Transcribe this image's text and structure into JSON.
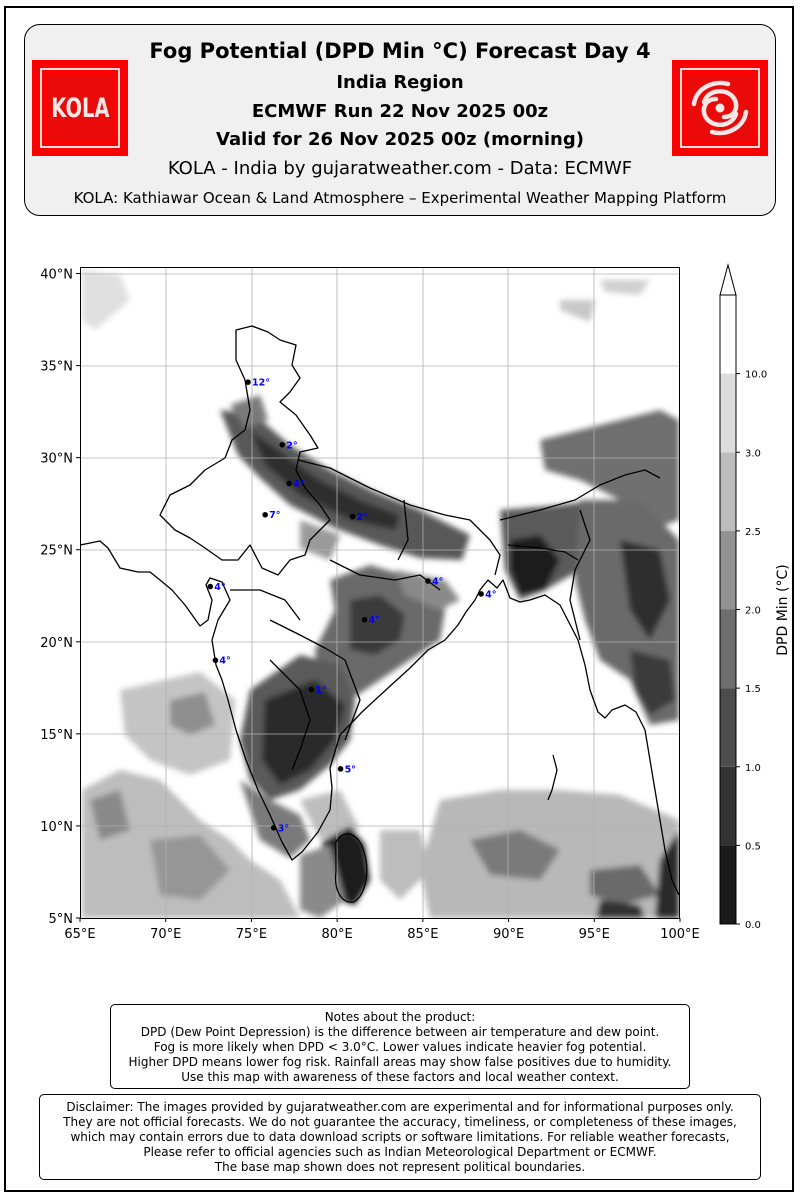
{
  "header": {
    "title": "Fog Potential (DPD Min °C) Forecast Day 4",
    "region": "India Region",
    "run": "ECMWF Run 22 Nov 2025 00z",
    "valid": "Valid for 26 Nov 2025 00z (morning)",
    "credit": "KOLA - India by gujaratweather.com  -  Data: ECMWF",
    "platform": "KOLA: Kathiawar Ocean & Land Atmosphere – Experimental Weather Mapping Platform"
  },
  "logos": {
    "left": {
      "text": "KOLA",
      "color": "#ff0000"
    },
    "right": {
      "icon": "cyclone-icon",
      "color": "#ff0000"
    }
  },
  "map": {
    "lon_range": [
      65,
      100
    ],
    "lat_range": [
      5,
      40.3
    ],
    "x_ticks": [
      "65°E",
      "70°E",
      "75°E",
      "80°E",
      "85°E",
      "90°E",
      "95°E",
      "100°E"
    ],
    "y_ticks": [
      "5°N",
      "10°N",
      "15°N",
      "20°N",
      "25°N",
      "30°N",
      "35°N",
      "40°N"
    ],
    "grid": true,
    "stations": [
      {
        "lon": 74.8,
        "lat": 34.1,
        "label": "12°"
      },
      {
        "lon": 76.8,
        "lat": 30.7,
        "label": "2°"
      },
      {
        "lon": 77.2,
        "lat": 28.6,
        "label": "4°"
      },
      {
        "lon": 75.8,
        "lat": 26.9,
        "label": "7°"
      },
      {
        "lon": 80.9,
        "lat": 26.8,
        "label": "2°"
      },
      {
        "lon": 72.6,
        "lat": 23.0,
        "label": "4°"
      },
      {
        "lon": 85.3,
        "lat": 23.3,
        "label": "4°"
      },
      {
        "lon": 88.4,
        "lat": 22.6,
        "label": "4°"
      },
      {
        "lon": 81.6,
        "lat": 21.2,
        "label": "4°"
      },
      {
        "lon": 72.9,
        "lat": 19.0,
        "label": "4°"
      },
      {
        "lon": 78.5,
        "lat": 17.4,
        "label": "1°"
      },
      {
        "lon": 80.2,
        "lat": 13.1,
        "label": "5°"
      },
      {
        "lon": 76.3,
        "lat": 9.9,
        "label": "3°"
      }
    ],
    "station_label_color": "#0000ff"
  },
  "colorbar": {
    "label": "DPD Min (°C)",
    "ticks": [
      "0.0",
      "0.5",
      "1.0",
      "1.5",
      "2.0",
      "2.5",
      "3.0",
      "10.0"
    ],
    "colors": [
      "#1a1a1a",
      "#333333",
      "#4d4d4d",
      "#6e6e6e",
      "#929292",
      "#bcbcbc",
      "#dcdcdc",
      "#ffffff"
    ]
  },
  "notes": {
    "lines": [
      "Notes about the product:",
      "DPD (Dew Point Depression) is the difference between air temperature and dew point.",
      "Fog is more likely when DPD < 3.0°C. Lower values indicate heavier fog potential.",
      "Higher DPD means lower fog risk. Rainfall areas may show false positives due to humidity.",
      "Use this map with awareness of these factors and local weather context."
    ]
  },
  "disclaimer": {
    "lines": [
      "Disclaimer: The images provided by gujaratweather.com are experimental and for informational purposes only.",
      "They are not official forecasts. We do not guarantee the accuracy, timeliness, or completeness of these images,",
      "which may contain errors due to data download scripts or software limitations. For reliable weather forecasts,",
      "Please refer to official agencies such as Indian Meteorological Department or ECMWF.",
      "The base map shown does not represent political boundaries."
    ]
  }
}
